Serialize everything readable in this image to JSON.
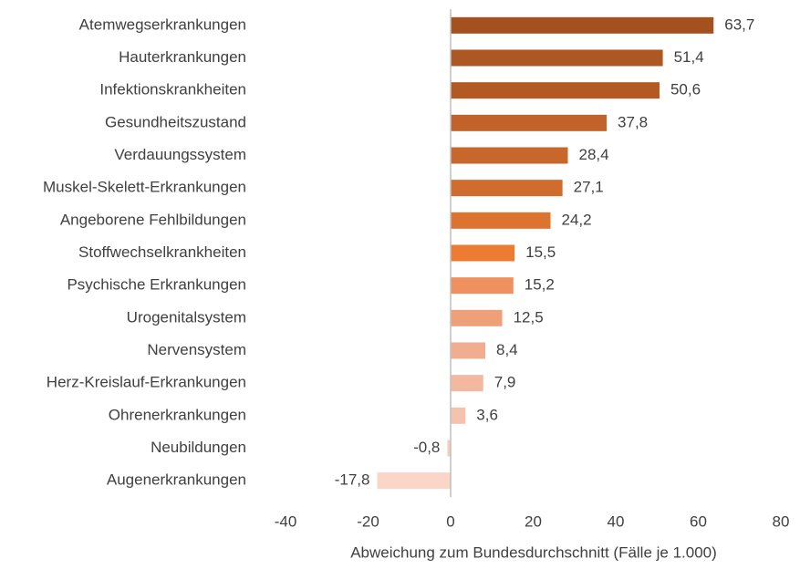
{
  "chart_data": {
    "type": "bar",
    "orientation": "horizontal",
    "x_label": "Abweichung zum Bundesdurchschnitt (Fälle je 1.000)",
    "categories": [
      "Atemwegserkrankungen",
      "Hauterkrankungen",
      "Infektionskrankheiten",
      "Gesundheitszustand",
      "Verdauungssystem",
      "Muskel-Skelett-Erkrankungen",
      "Angeborene Fehlbildungen",
      "Stoffwechselkrankheiten",
      "Psychische Erkrankungen",
      "Urogenitalsystem",
      "Nervensystem",
      "Herz-Kreislauf-Erkrankungen",
      "Ohrenerkrankungen",
      "Neubildungen",
      "Augenerkrankungen"
    ],
    "values": [
      63.7,
      51.4,
      50.6,
      37.8,
      28.4,
      27.1,
      24.2,
      15.5,
      15.2,
      12.5,
      8.4,
      7.9,
      3.6,
      -0.8,
      -17.8
    ],
    "value_labels": [
      "63,7",
      "51,4",
      "50,6",
      "37,8",
      "28,4",
      "27,1",
      "24,2",
      "15,5",
      "15,2",
      "12,5",
      "8,4",
      "7,9",
      "3,6",
      "-0,8",
      "-17,8"
    ],
    "colors": [
      "#a5511f",
      "#ad5722",
      "#b35a22",
      "#c0622a",
      "#c8672b",
      "#d06c2e",
      "#dc7430",
      "#eb7c32",
      "#ef915f",
      "#f0a078",
      "#f2ac8f",
      "#f4b7a0",
      "#f5c2ae",
      "#f7cdbd",
      "#f9d6c8"
    ],
    "xlim": [
      -40,
      80
    ],
    "xticks": [
      -40,
      -20,
      0,
      20,
      40,
      60,
      80
    ]
  }
}
